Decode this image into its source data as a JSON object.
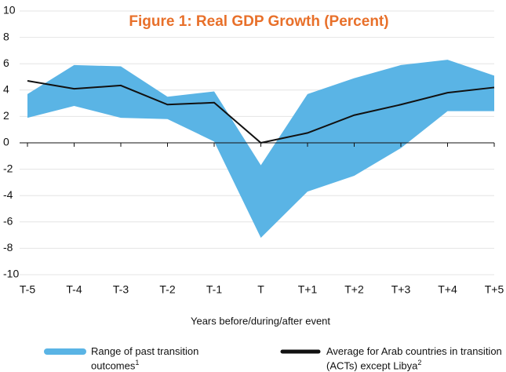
{
  "chart_data": {
    "type": "band_line",
    "title": "Figure 1: Real GDP Growth (Percent)",
    "x_label": "Years before/during/after event",
    "categories": [
      "T-5",
      "T-4",
      "T-3",
      "T-2",
      "T-1",
      "T",
      "T+1",
      "T+2",
      "T+3",
      "T+4",
      "T+5"
    ],
    "ylim": [
      -10,
      10
    ],
    "yticks": [
      10,
      8,
      6,
      4,
      2,
      0,
      -2,
      -4,
      -6,
      -8,
      -10
    ],
    "grid": true,
    "series": [
      {
        "name": "Range of past transition outcomes",
        "note": "1",
        "color": "#5ab4e5",
        "high": [
          3.7,
          5.9,
          5.8,
          3.5,
          3.9,
          -1.7,
          3.7,
          4.9,
          5.9,
          6.3,
          5.1
        ],
        "low": [
          1.9,
          2.8,
          1.9,
          1.8,
          0.1,
          -7.2,
          -3.7,
          -2.5,
          -0.4,
          2.4,
          2.4
        ]
      },
      {
        "name": "Average for Arab countries in transition (ACTs) except Libya",
        "note": "2",
        "color": "#111111",
        "values": [
          4.7,
          4.1,
          4.35,
          2.9,
          3.05,
          0,
          0.75,
          2.1,
          2.9,
          3.8,
          4.2
        ]
      }
    ]
  }
}
